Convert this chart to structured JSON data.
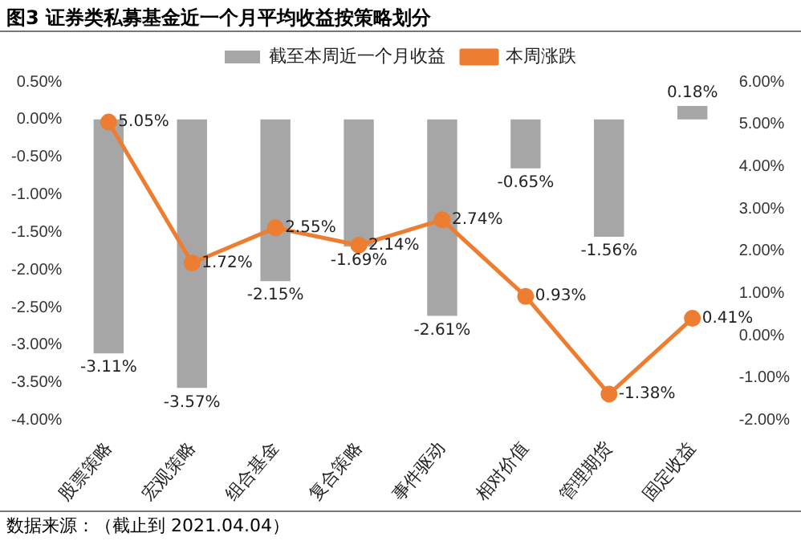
{
  "chart_data": {
    "type": "bar",
    "title": "图3 证券类私募基金近一个月平均收益按策略划分",
    "categories": [
      "股票策略",
      "宏观策略",
      "组合基金",
      "复合策略",
      "事件驱动",
      "相对价值",
      "管理期货",
      "固定收益"
    ],
    "series": [
      {
        "name": "截至本周近一个月收益",
        "color": "#a6a6a6",
        "values": [
          -3.11,
          -3.57,
          -2.15,
          -1.69,
          -2.61,
          -0.65,
          -1.56,
          0.18
        ],
        "value_labels": [
          "-3.11%",
          "-3.57%",
          "-2.15%",
          "-1.69%",
          "-2.61%",
          "-0.65%",
          "-1.56%",
          "0.18%"
        ]
      },
      {
        "name": "本周涨跌",
        "type": "line",
        "axis": "y2",
        "color": "#ed7d31",
        "marker": "circle",
        "values": [
          5.05,
          1.72,
          2.55,
          2.14,
          2.74,
          0.93,
          -1.38,
          0.41
        ],
        "value_labels": [
          "5.05%",
          "1.72%",
          "2.55%",
          "2.14%",
          "2.74%",
          "0.93%",
          "-1.38%",
          "0.41%"
        ]
      }
    ],
    "ylim": [
      -4,
      0.5
    ],
    "yticks": [
      {
        "value": -4,
        "label": "-4.00%"
      },
      {
        "value": -3.5,
        "label": "-3.50%"
      },
      {
        "value": -3,
        "label": "-3.00%"
      },
      {
        "value": -2.5,
        "label": "-2.50%"
      },
      {
        "value": -2,
        "label": "-2.00%"
      },
      {
        "value": -1.5,
        "label": "-1.50%"
      },
      {
        "value": -1,
        "label": "-1.00%"
      },
      {
        "value": -0.5,
        "label": "-0.50%"
      },
      {
        "value": 0,
        "label": "0.00%"
      },
      {
        "value": 0.5,
        "label": "0.50%"
      }
    ],
    "y2lim": [
      -2,
      6
    ],
    "y2ticks": [
      {
        "value": -2,
        "label": "-2.00%"
      },
      {
        "value": -1,
        "label": "-1.00%"
      },
      {
        "value": 0,
        "label": "0.00%"
      },
      {
        "value": 1,
        "label": "1.00%"
      },
      {
        "value": 2,
        "label": "2.00%"
      },
      {
        "value": 3,
        "label": "3.00%"
      },
      {
        "value": 4,
        "label": "4.00%"
      },
      {
        "value": 5,
        "label": "5.00%"
      },
      {
        "value": 6,
        "label": "6.00%"
      }
    ],
    "legend": "top",
    "grid": false,
    "annotations": [
      "数据来源：（截止到 2021.04.04）"
    ]
  }
}
